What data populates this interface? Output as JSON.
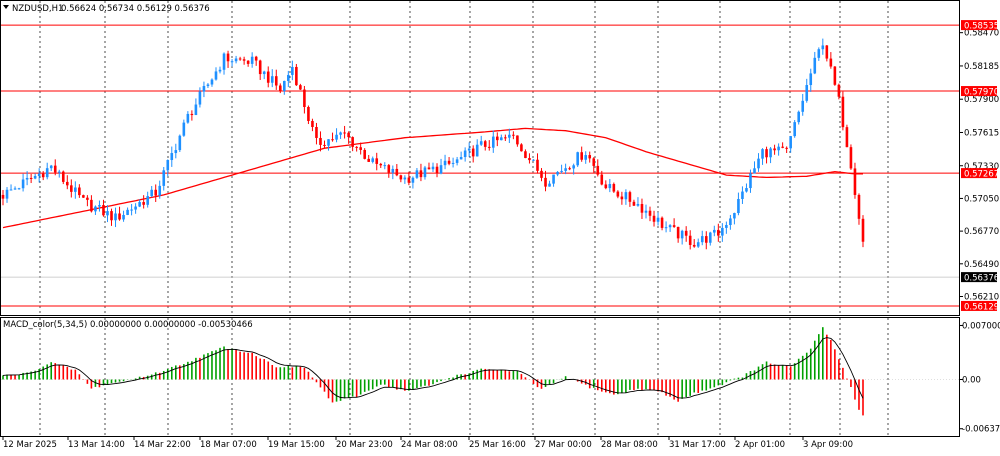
{
  "main_header": {
    "symbol": "NZDUSD,H1",
    "ohlc": "0.56624 0.56734 0.56129 0.56376"
  },
  "macd_header": {
    "title": "MACD_color(5,34,5) 0.00000000 0.00000000 -0.00530466"
  },
  "colors": {
    "bull": "#1e90ff",
    "bear": "#ff0000",
    "ma": "#ff0000",
    "hline": "#ff0000",
    "grid": "#000000",
    "hist_up": "#00a000",
    "hist_down": "#ff0000",
    "signal": "#000000"
  },
  "chart_data": [
    {
      "type": "candlestick",
      "title": "NZDUSD,H1",
      "ylim": [
        0.5606,
        0.5863
      ],
      "y_ticks": [
        "0.58470",
        "0.58185",
        "0.57900",
        "0.57615",
        "0.57330",
        "0.57050",
        "0.56770",
        "0.56490",
        "0.56210"
      ],
      "x_ticks": [
        "12 Mar 2025",
        "13 Mar 14:00",
        "14 Mar 22:00",
        "18 Mar 07:00",
        "19 Mar 15:00",
        "20 Mar 23:00",
        "24 Mar 08:00",
        "25 Mar 16:00",
        "27 Mar 00:00",
        "28 Mar 08:00",
        "31 Mar 17:00",
        "2 Apr 01:00",
        "3 Apr 09:00"
      ],
      "grid": "vertical dotted",
      "horizontal_levels": [
        "0.58535",
        "0.57970",
        "0.57267",
        "0.56129"
      ],
      "current_price": "0.56376",
      "bars": 215,
      "trend_path": [
        [
          0,
          0.5708
        ],
        [
          12,
          0.5732
        ],
        [
          20,
          0.5702
        ],
        [
          28,
          0.5688
        ],
        [
          38,
          0.571
        ],
        [
          46,
          0.5775
        ],
        [
          55,
          0.5825
        ],
        [
          62,
          0.5822
        ],
        [
          69,
          0.5798
        ],
        [
          72,
          0.5818
        ],
        [
          78,
          0.5752
        ],
        [
          85,
          0.576
        ],
        [
          92,
          0.5735
        ],
        [
          100,
          0.5722
        ],
        [
          112,
          0.5735
        ],
        [
          119,
          0.575
        ],
        [
          127,
          0.5758
        ],
        [
          135,
          0.572
        ],
        [
          145,
          0.5745
        ],
        [
          150,
          0.5715
        ],
        [
          158,
          0.57
        ],
        [
          165,
          0.568
        ],
        [
          172,
          0.5667
        ],
        [
          178,
          0.5675
        ],
        [
          182,
          0.5695
        ],
        [
          189,
          0.5745
        ],
        [
          195,
          0.5745
        ],
        [
          201,
          0.5812
        ],
        [
          204,
          0.584
        ],
        [
          208,
          0.5788
        ],
        [
          211,
          0.5735
        ],
        [
          213,
          0.569
        ],
        [
          215,
          0.5645
        ]
      ],
      "ma_path": [
        [
          0,
          0.568
        ],
        [
          40,
          0.5708
        ],
        [
          60,
          0.5728
        ],
        [
          80,
          0.5748
        ],
        [
          100,
          0.5757
        ],
        [
          120,
          0.5762
        ],
        [
          130,
          0.5765
        ],
        [
          140,
          0.5763
        ],
        [
          150,
          0.5757
        ],
        [
          160,
          0.5745
        ],
        [
          170,
          0.5735
        ],
        [
          180,
          0.5725
        ],
        [
          190,
          0.5723
        ],
        [
          200,
          0.5724
        ],
        [
          207,
          0.5728
        ],
        [
          212,
          0.5726
        ]
      ]
    },
    {
      "type": "histogram",
      "title": "MACD_color(5,34,5)",
      "ylim": [
        -0.0068,
        0.00745
      ],
      "y_ticks": [
        "0.0070008",
        "0.00",
        "-0.0063764"
      ],
      "bars": 215,
      "hist_path": [
        [
          0,
          0.0005
        ],
        [
          6,
          0.0008
        ],
        [
          12,
          0.0022
        ],
        [
          18,
          0.0012
        ],
        [
          22,
          -0.0012
        ],
        [
          26,
          -0.0006
        ],
        [
          30,
          -0.0002
        ],
        [
          38,
          0.0008
        ],
        [
          46,
          0.0023
        ],
        [
          55,
          0.0042
        ],
        [
          62,
          0.0034
        ],
        [
          68,
          0.0017
        ],
        [
          75,
          0.0016
        ],
        [
          82,
          -0.003
        ],
        [
          88,
          -0.0022
        ],
        [
          94,
          -0.0006
        ],
        [
          100,
          -0.0015
        ],
        [
          106,
          -0.0008
        ],
        [
          112,
          0.0004
        ],
        [
          120,
          0.0014
        ],
        [
          128,
          0.001
        ],
        [
          134,
          -0.0013
        ],
        [
          140,
          0.0004
        ],
        [
          146,
          -0.001
        ],
        [
          152,
          -0.002
        ],
        [
          158,
          -0.0012
        ],
        [
          163,
          -0.0015
        ],
        [
          168,
          -0.0028
        ],
        [
          172,
          -0.0018
        ],
        [
          178,
          -0.0008
        ],
        [
          184,
          0.0004
        ],
        [
          190,
          0.0022
        ],
        [
          196,
          0.0016
        ],
        [
          201,
          0.004
        ],
        [
          204,
          0.0068
        ],
        [
          206,
          0.005
        ],
        [
          209,
          0.0015
        ],
        [
          211,
          -0.001
        ],
        [
          213,
          -0.004
        ],
        [
          215,
          -0.0053
        ]
      ]
    }
  ]
}
